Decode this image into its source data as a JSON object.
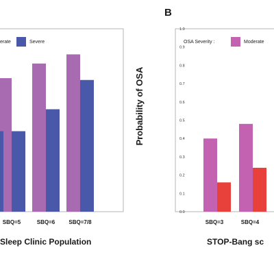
{
  "panel_labels": {
    "right": "B"
  },
  "captions": {
    "left": "Sleep Clinic Population",
    "right": "STOP-Bang sc"
  },
  "colors": {
    "moderate": "#a86bb2",
    "severe": "#4a58aa",
    "moderate_b": "#c462b2",
    "severe_b": "#e8403a"
  },
  "chart_data": [
    {
      "type": "bar",
      "title": "",
      "xlabel": "Sleep Clinic Population",
      "ylabel": "",
      "categories": [
        "",
        "SBQ=5",
        "SBQ=6",
        "SBQ=7/8"
      ],
      "legend": {
        "prefix": "",
        "placement": "top",
        "entries": [
          "erate",
          "Severe"
        ]
      },
      "series": [
        {
          "name": "erate",
          "values": [
            null,
            0.73,
            0.81,
            0.86
          ]
        },
        {
          "name": "Severe",
          "values": [
            null,
            0.44,
            0.56,
            0.72
          ]
        }
      ],
      "ylim": [
        0,
        1.0
      ],
      "grid": false
    },
    {
      "type": "bar",
      "title": "",
      "xlabel": "STOP-Bang sc",
      "ylabel": "Probability of OSA",
      "categories": [
        "SBQ=3",
        "SBQ=4"
      ],
      "legend": {
        "prefix": "OSA Severity :",
        "placement": "top",
        "entries": [
          "Moderate"
        ]
      },
      "series": [
        {
          "name": "Moderate",
          "values": [
            0.4,
            0.48
          ]
        },
        {
          "name": "",
          "values": [
            0.16,
            0.24
          ]
        }
      ],
      "yticks": [
        "0.0",
        "0.1",
        "0.2",
        "0.3",
        "0.4",
        "0.5",
        "0.6",
        "0.7",
        "0.8",
        "0.9",
        "1.0"
      ],
      "ylim": [
        0,
        1.0
      ],
      "grid": false
    }
  ]
}
